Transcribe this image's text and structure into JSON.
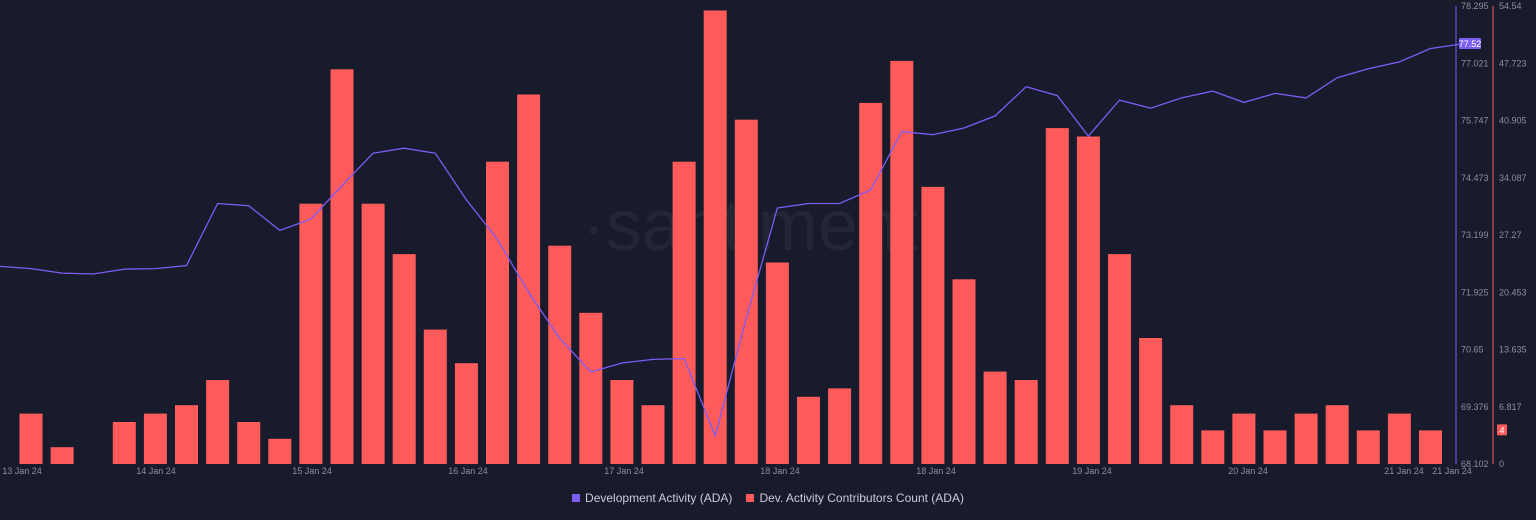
{
  "watermark": "·santiment·",
  "chart_data": {
    "type": "bar+line",
    "x_tick_labels": [
      "13 Jan 24",
      "14 Jan 24",
      "15 Jan 24",
      "16 Jan 24",
      "17 Jan 24",
      "18 Jan 24",
      "18 Jan 24",
      "19 Jan 24",
      "20 Jan 24",
      "21 Jan 24",
      "21 Jan 24"
    ],
    "left_axis": {
      "ticks": [
        "78.295",
        "77.021",
        "75.747",
        "74.473",
        "73.199",
        "71.925",
        "70.65",
        "69.376",
        "68.102"
      ],
      "range": [
        68.102,
        78.295
      ]
    },
    "right_axis": {
      "ticks": [
        "54.54",
        "47.723",
        "40.905",
        "34.087",
        "27.27",
        "20.453",
        "13.635",
        "6.817",
        "0"
      ],
      "range": [
        0,
        54.54
      ]
    },
    "series": [
      {
        "name": "Development Activity (ADA)",
        "axis": "left",
        "color": "#7b5cf5",
        "last_value": "77.52",
        "values": [
          72.5,
          72.45,
          72.35,
          72.33,
          72.44,
          72.45,
          72.52,
          73.9,
          73.85,
          73.3,
          73.55,
          74.3,
          75.02,
          75.13,
          75.02,
          73.98,
          73.1,
          71.92,
          70.9,
          70.15,
          70.35,
          70.43,
          70.45,
          68.73,
          71.35,
          73.8,
          73.9,
          73.9,
          74.2,
          75.5,
          75.43,
          75.58,
          75.85,
          76.5,
          76.3,
          75.4,
          76.2,
          76.02,
          76.25,
          76.4,
          76.15,
          76.35,
          76.25,
          76.7,
          76.9,
          77.05,
          77.35,
          77.45
        ],
        "x_pos": [
          0,
          0.5,
          1.5,
          2.5,
          3.5,
          4.5,
          5.5,
          6.5,
          7.5,
          8.5,
          9.5,
          10.5,
          11.5,
          12.5,
          13.5,
          14.5,
          15.5,
          16.5,
          17.5,
          18.5,
          19.5,
          20.5,
          21.5,
          22.5,
          23.5,
          24.5,
          25.5,
          26.5,
          27.5,
          28.5,
          29.5,
          30.5,
          31.5,
          32.5,
          33.5,
          34.5,
          35.5,
          36.5,
          37.5,
          38.5,
          39.5,
          40.5,
          41.5,
          42.5,
          43.5,
          44.5,
          45.5,
          46.5
        ]
      },
      {
        "name": "Dev. Activity Contributors Count (ADA)",
        "axis": "right",
        "color": "#ff5b5b",
        "last_value": "4",
        "values": [
          6,
          2,
          0,
          5,
          6,
          7,
          10,
          5,
          3,
          31,
          47,
          31,
          25,
          16,
          12,
          36,
          44,
          26,
          18,
          10,
          7,
          36,
          54,
          41,
          24,
          8,
          9,
          43,
          48,
          33,
          22,
          11,
          10,
          40,
          39,
          25,
          15,
          7,
          4,
          6,
          4,
          6,
          7,
          4,
          6,
          4
        ]
      }
    ]
  }
}
